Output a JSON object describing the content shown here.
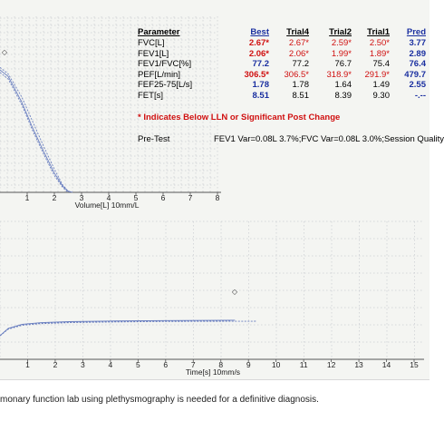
{
  "colors": {
    "blue": "#1a2fa0",
    "red": "#d01010",
    "grid": "#b8bcc4",
    "curve": "#6a7fc0"
  },
  "table": {
    "columns": [
      "Parameter",
      "Best",
      "Trial4",
      "Trial2",
      "Trial1",
      "Pred"
    ],
    "rows": [
      {
        "param": "FVC[L]",
        "best": "2.67*",
        "t4": "2.67*",
        "t2": "2.59*",
        "t1": "2.50*",
        "pred": "3.77"
      },
      {
        "param": "FEV1[L]",
        "best": "2.06*",
        "t4": "2.06*",
        "t2": "1.99*",
        "t1": "1.89*",
        "pred": "2.89"
      },
      {
        "param": "FEV1/FVC[%]",
        "best": "77.2",
        "t4": "77.2",
        "t2": "76.7",
        "t1": "75.4",
        "pred": "76.4"
      },
      {
        "param": "PEF[L/min]",
        "best": "306.5*",
        "t4": "306.5*",
        "t2": "318.9*",
        "t1": "291.9*",
        "pred": "479.7"
      },
      {
        "param": "FEF25-75[L/s]",
        "best": "1.78",
        "t4": "1.78",
        "t2": "1.64",
        "t1": "1.49",
        "pred": "2.55"
      },
      {
        "param": "FET[s]",
        "best": "8.51",
        "t4": "8.51",
        "t2": "8.39",
        "t1": "9.30",
        "pred": "-.--"
      }
    ],
    "footnote": "* Indicates Below LLN or Significant Post Change"
  },
  "pretest": {
    "label": "Pre-Test",
    "text": "FEV1 Var=0.08L 3.7%;FVC Var=0.08L 3.0%;Session Quality"
  },
  "caption": "monary function lab using plethysmography is needed for a definitive diagnosis.",
  "chart_data": [
    {
      "type": "line",
      "title": "",
      "xlabel": "Volume[L] 10mm/L",
      "ylabel": "",
      "x_ticks": [
        "1",
        "2",
        "3",
        "4",
        "5",
        "6",
        "7",
        "8"
      ],
      "xlim": [
        0,
        8
      ],
      "grid": true,
      "series": [
        {
          "x": [
            0.0,
            0.3,
            0.8,
            1.2,
            1.6,
            2.0,
            2.3,
            2.5,
            2.67
          ],
          "y": [
            0.95,
            0.9,
            0.7,
            0.5,
            0.32,
            0.15,
            0.05,
            0.01,
            0.0
          ]
        },
        {
          "x": [
            0.0,
            0.3,
            0.8,
            1.2,
            1.6,
            2.0,
            2.3,
            2.5,
            2.59
          ],
          "y": [
            0.97,
            0.92,
            0.74,
            0.55,
            0.36,
            0.18,
            0.06,
            0.01,
            0.0
          ]
        },
        {
          "x": [
            0.0,
            0.3,
            0.8,
            1.2,
            1.6,
            2.0,
            2.3,
            2.45,
            2.5
          ],
          "y": [
            0.93,
            0.88,
            0.68,
            0.48,
            0.3,
            0.13,
            0.04,
            0.01,
            0.0
          ]
        }
      ],
      "markers": [
        {
          "x": 0.0,
          "y": 1.0
        }
      ]
    },
    {
      "type": "line",
      "title": "",
      "xlabel": "Time[s] 10mm/s",
      "ylabel": "",
      "x_ticks": [
        "1",
        "2",
        "3",
        "4",
        "5",
        "6",
        "7",
        "8",
        "9",
        "10",
        "11",
        "12",
        "13",
        "14",
        "15"
      ],
      "xlim": [
        0,
        15.5
      ],
      "grid": true,
      "series": [
        {
          "x": [
            0.0,
            0.3,
            0.8,
            1.5,
            2.5,
            4.0,
            6.0,
            8.51
          ],
          "y": [
            0.0,
            0.45,
            0.7,
            0.8,
            0.86,
            0.9,
            0.93,
            0.95
          ]
        },
        {
          "x": [
            0.0,
            0.3,
            0.8,
            1.5,
            2.5,
            4.0,
            6.0,
            8.39
          ],
          "y": [
            0.0,
            0.42,
            0.67,
            0.77,
            0.83,
            0.87,
            0.9,
            0.92
          ]
        },
        {
          "x": [
            0.0,
            0.3,
            0.8,
            1.5,
            2.5,
            4.0,
            6.0,
            9.3
          ],
          "y": [
            0.0,
            0.4,
            0.64,
            0.74,
            0.8,
            0.84,
            0.87,
            0.89
          ]
        }
      ],
      "markers": [
        {
          "x": 8.5,
          "y": 1.5
        }
      ]
    }
  ]
}
